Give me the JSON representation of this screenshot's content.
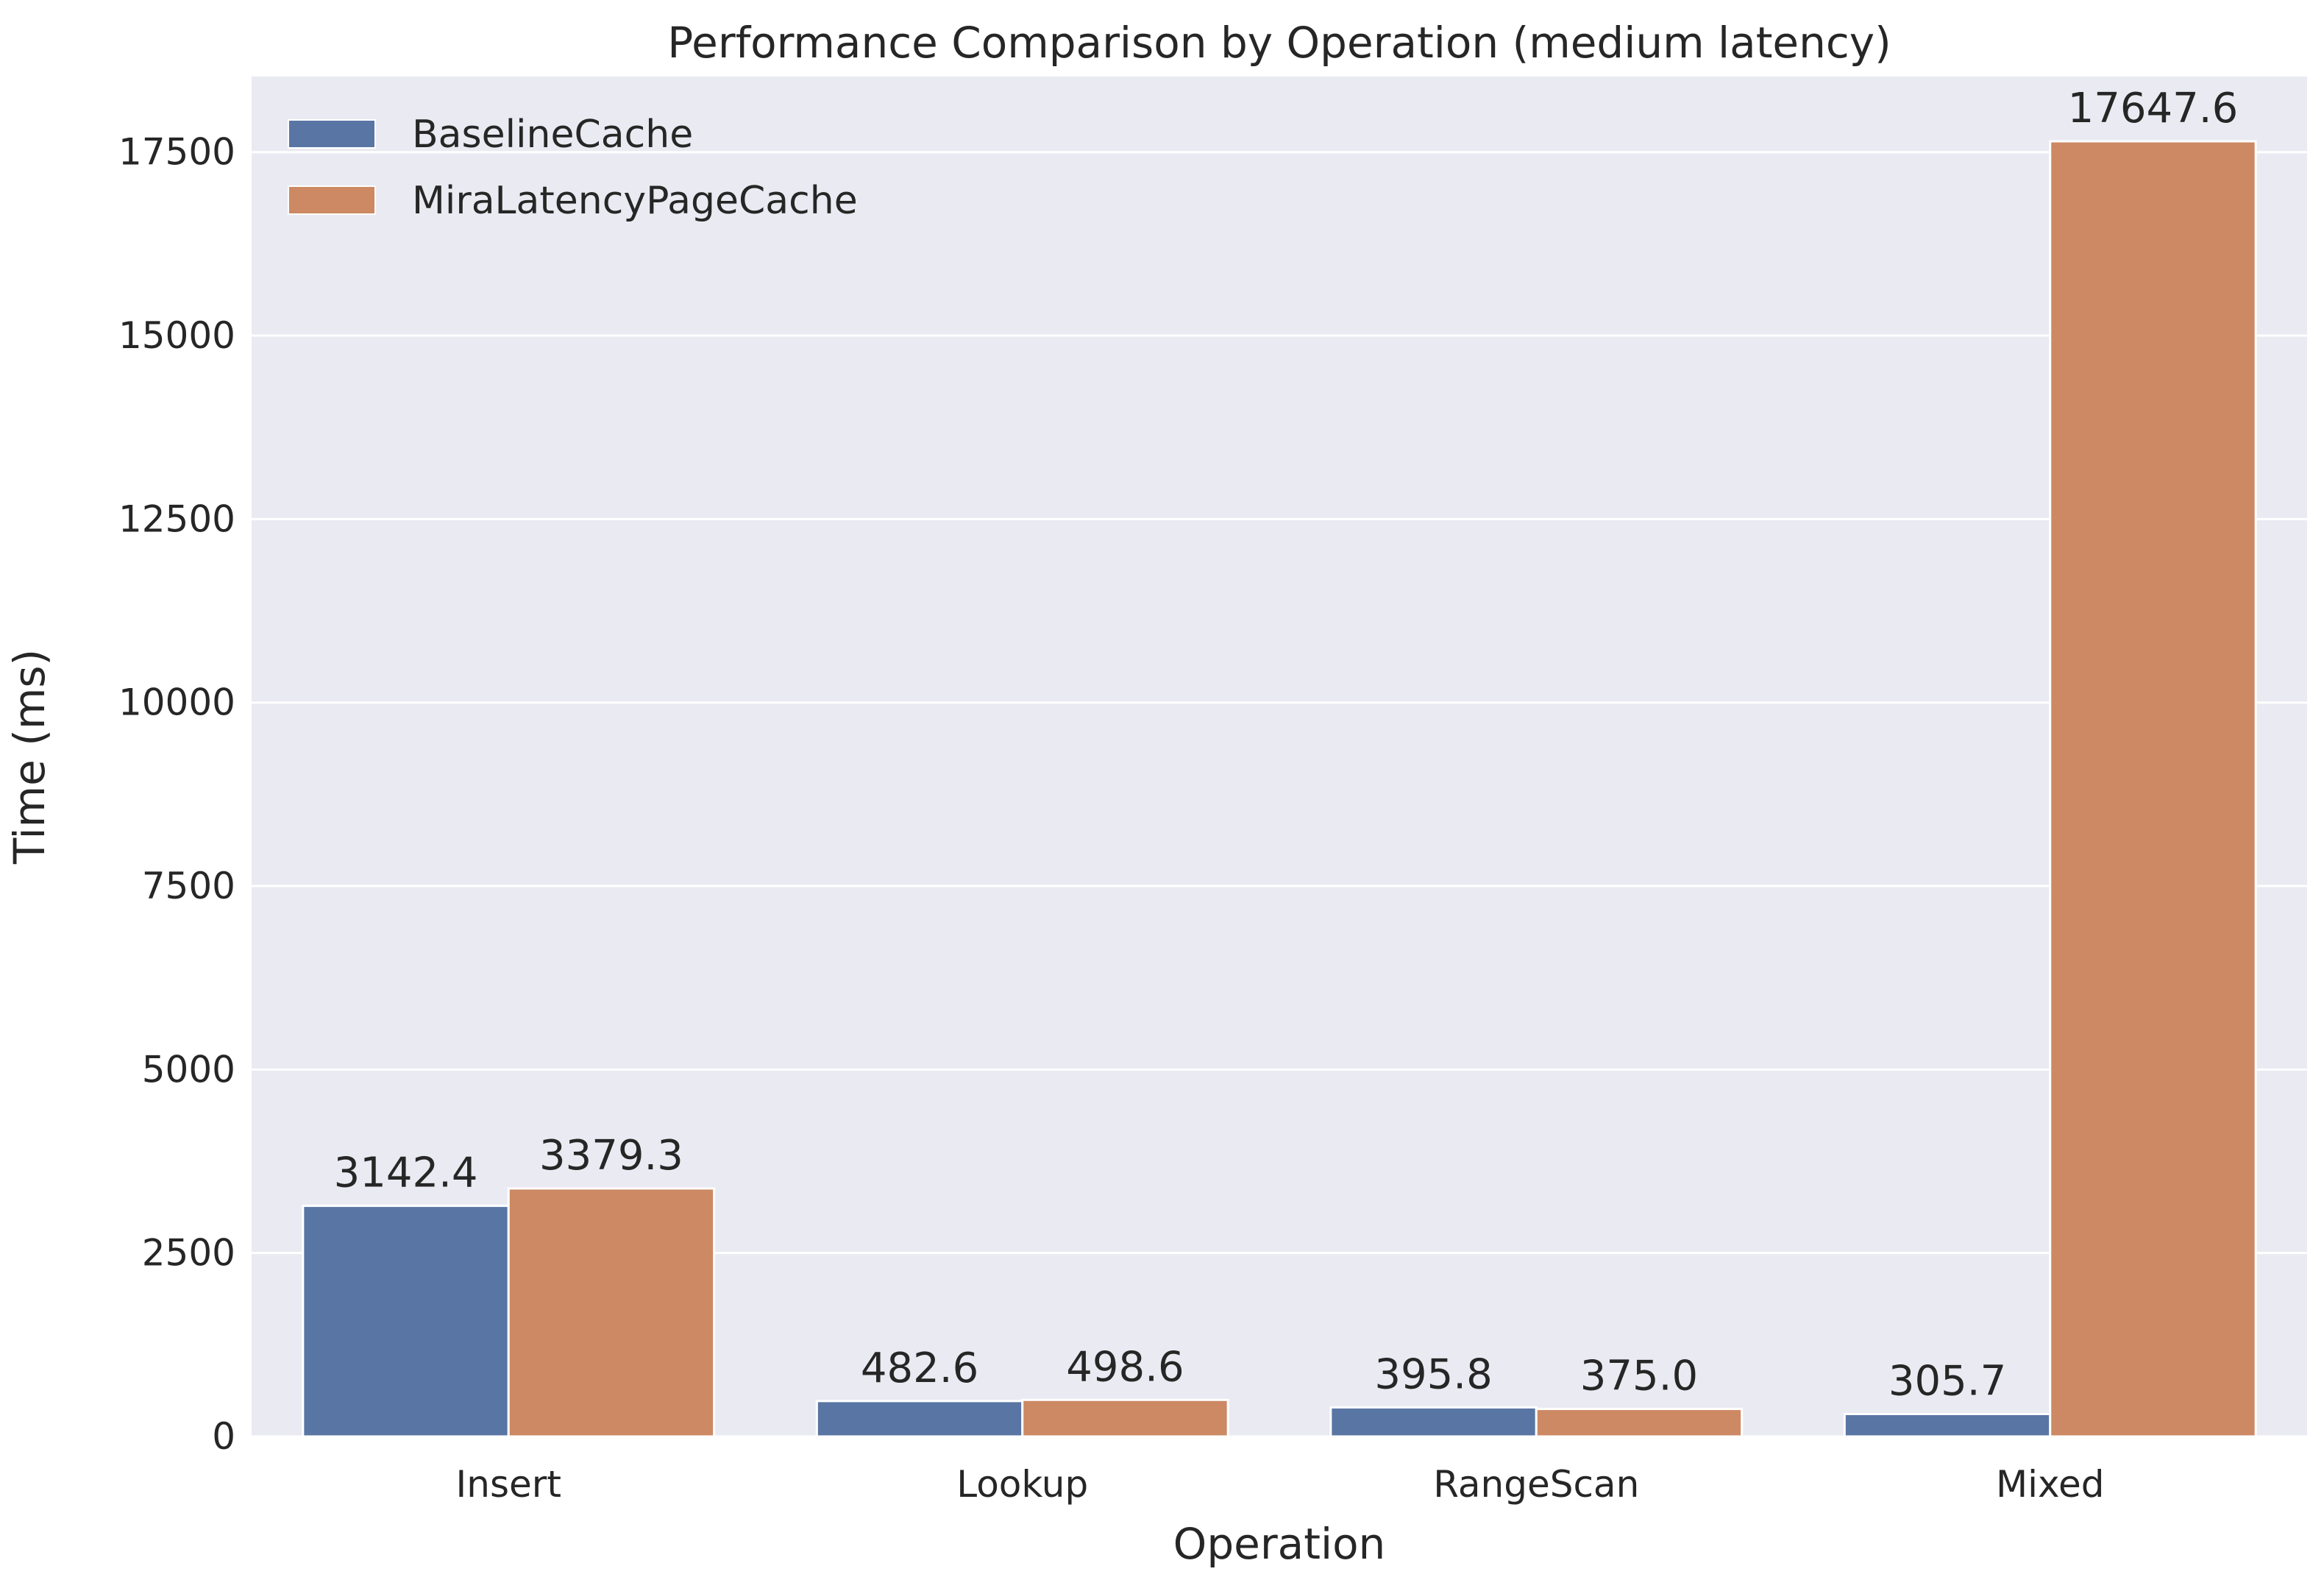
{
  "chart_data": {
    "type": "bar",
    "title": "Performance Comparison by Operation (medium latency)",
    "xlabel": "Operation",
    "ylabel": "Time (ms)",
    "categories": [
      "Insert",
      "Lookup",
      "RangeScan",
      "Mixed"
    ],
    "series": [
      {
        "name": "BaselineCache",
        "values": [
          3142.4,
          482.6,
          395.8,
          305.7
        ],
        "color": "#5975a4",
        "labels": [
          "3142.4",
          "482.6",
          "395.8",
          "305.7"
        ]
      },
      {
        "name": "MiraLatencyPageCache",
        "values": [
          3379.3,
          498.6,
          375.0,
          17647.6
        ],
        "color": "#cc8963",
        "labels": [
          "3379.3",
          "498.6",
          "375.0",
          "17647.6"
        ]
      }
    ],
    "ylim": [
      0,
      18530
    ],
    "yticks": [
      0,
      2500,
      5000,
      7500,
      10000,
      12500,
      15000,
      17500
    ],
    "ytick_labels": [
      "0",
      "2500",
      "5000",
      "7500",
      "10000",
      "12500",
      "15000",
      "17500"
    ],
    "grid": true,
    "legend_position": "top-left",
    "background": "#eaeaf2",
    "grid_color": "#ffffff"
  }
}
